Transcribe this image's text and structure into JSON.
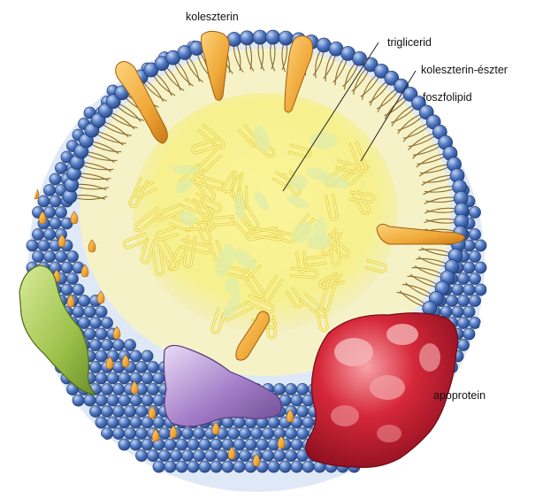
{
  "labels": {
    "cholesterol": "koleszterin",
    "triglyceride": "triglicerid",
    "cholesterol_ester": "koleszterin-észter",
    "phospholipid": "foszfolipid",
    "apoprotein": "apoprotein"
  },
  "colors": {
    "head": "#4f78c2",
    "head_shadow": "#2c4a8a",
    "head_light": "#c3d5f2",
    "tail": "#8a6a2a",
    "core": "#f6f08e",
    "core_edge": "#f3efc0",
    "cholesterol": "#f0a838",
    "apoprotein_red": "#d6283a",
    "apoprotein_green": "#9cc24a",
    "apoprotein_purple": "#a47ec8",
    "leader_line": "#222222"
  },
  "icons": {
    "cholesterol": "orange-spindle-molecule",
    "phospholipid": "blue-sphere-head-with-tails",
    "apoprotein": "lumpy-protein-blob"
  }
}
